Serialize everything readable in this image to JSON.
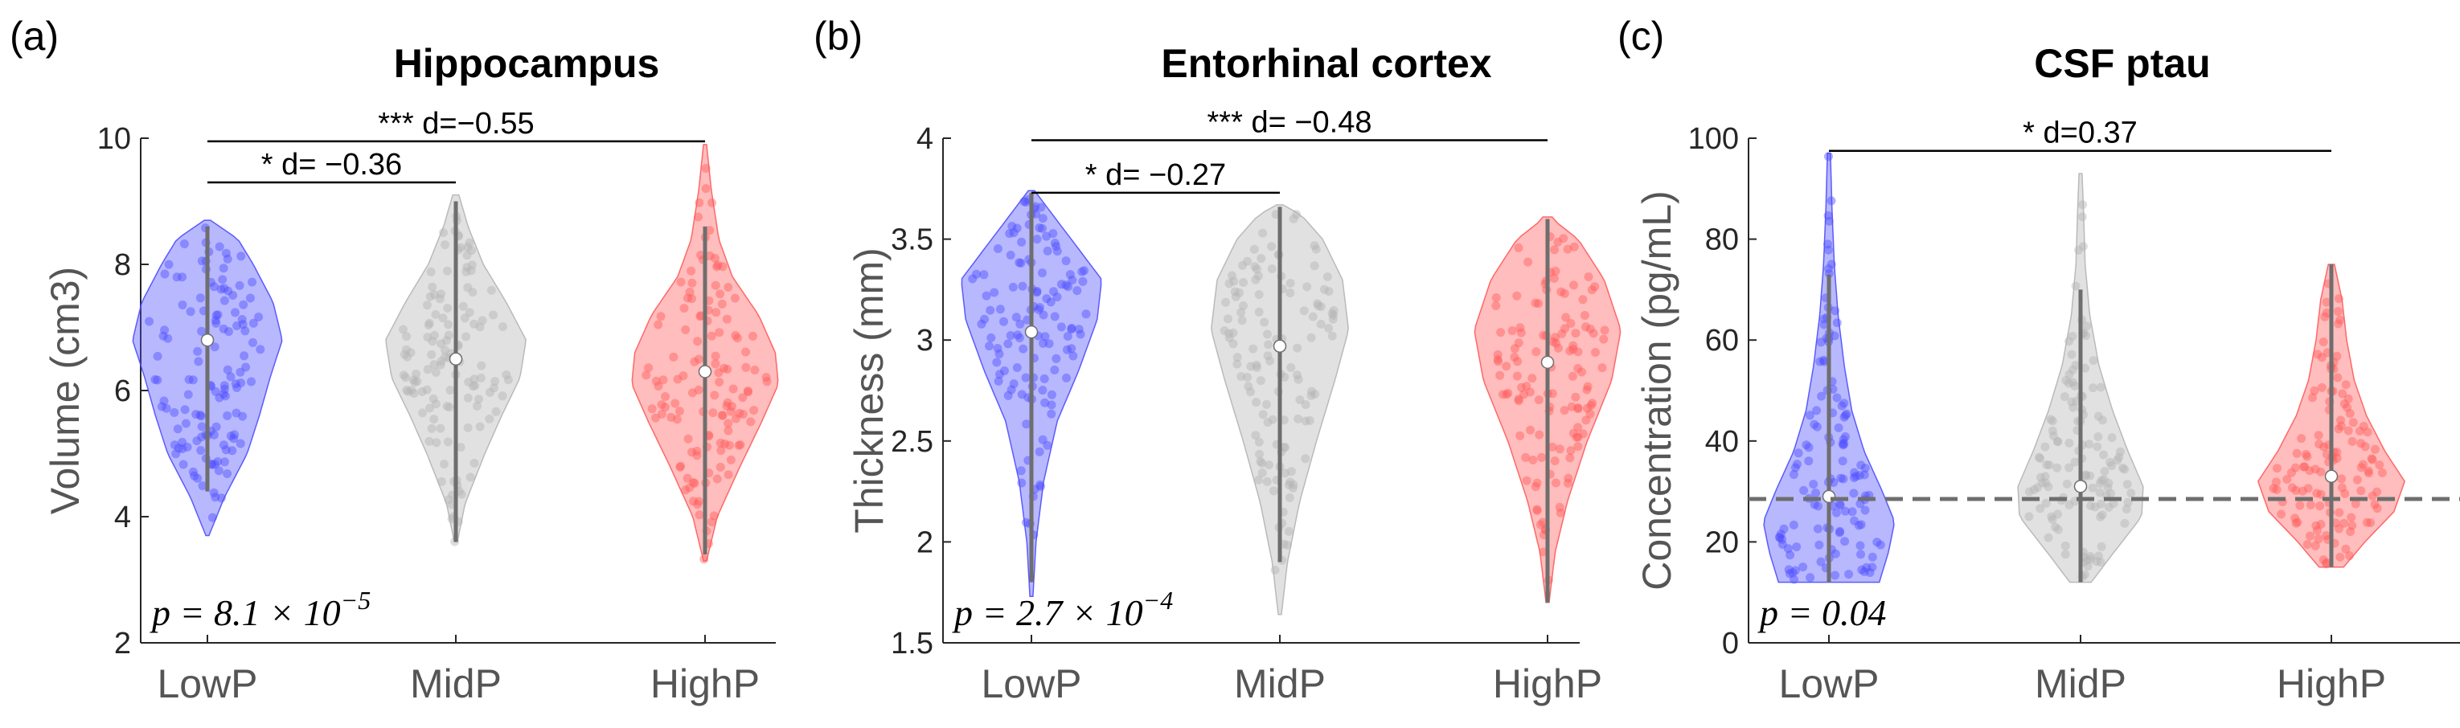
{
  "chart_data": [
    {
      "type": "violin",
      "panel": "(a)",
      "title": "Hippocampus",
      "ylabel": "Volume (cm3)",
      "ylim": [
        2,
        10
      ],
      "yticks": [
        2,
        4,
        6,
        8,
        10
      ],
      "categories": [
        "LowP",
        "MidP",
        "HighP"
      ],
      "colors": [
        "#4d4dff",
        "#b4b4b4",
        "#ff5a5a"
      ],
      "medians": [
        6.8,
        6.5,
        6.3
      ],
      "ranges": [
        [
          3.7,
          8.7
        ],
        [
          3.6,
          9.1
        ],
        [
          3.3,
          9.9
        ]
      ],
      "whiskers": [
        [
          4.4,
          8.6
        ],
        [
          3.6,
          9.0
        ],
        [
          3.4,
          8.6
        ]
      ],
      "widths": [
        [
          3.7,
          0.02
        ],
        [
          4.3,
          0.22
        ],
        [
          5.0,
          0.52
        ],
        [
          5.6,
          0.68
        ],
        [
          6.2,
          0.82
        ],
        [
          6.8,
          0.98
        ],
        [
          7.4,
          0.86
        ],
        [
          8.0,
          0.6
        ],
        [
          8.4,
          0.4
        ],
        [
          8.7,
          0.04
        ]
      ],
      "widths_mid": [
        [
          3.6,
          0.02
        ],
        [
          4.2,
          0.12
        ],
        [
          5.0,
          0.38
        ],
        [
          5.6,
          0.6
        ],
        [
          6.2,
          0.84
        ],
        [
          6.8,
          0.92
        ],
        [
          7.4,
          0.66
        ],
        [
          8.0,
          0.36
        ],
        [
          8.6,
          0.16
        ],
        [
          9.1,
          0.04
        ]
      ],
      "widths_high": [
        [
          3.3,
          0.02
        ],
        [
          4.0,
          0.16
        ],
        [
          4.8,
          0.46
        ],
        [
          5.5,
          0.74
        ],
        [
          6.1,
          0.96
        ],
        [
          6.6,
          0.92
        ],
        [
          7.2,
          0.7
        ],
        [
          7.8,
          0.36
        ],
        [
          8.4,
          0.18
        ],
        [
          9.2,
          0.08
        ],
        [
          9.9,
          0.02
        ]
      ],
      "comparisons": [
        {
          "from": 0,
          "to": 1,
          "label": "* d= −0.36",
          "y": 9.3
        },
        {
          "from": 0,
          "to": 2,
          "label": "*** d=−0.55",
          "y": 9.95
        }
      ],
      "p_text": "p = 8.1 × 10",
      "p_exp": "−5"
    },
    {
      "type": "violin",
      "panel": "(b)",
      "title": "Entorhinal cortex",
      "ylabel": "Thickness (mm)",
      "ylim": [
        1.5,
        4
      ],
      "yticks": [
        1.5,
        2,
        2.5,
        3,
        3.5,
        4
      ],
      "categories": [
        "LowP",
        "MidP",
        "HighP"
      ],
      "colors": [
        "#4d4dff",
        "#b4b4b4",
        "#ff5a5a"
      ],
      "medians": [
        3.04,
        2.97,
        2.89
      ],
      "ranges": [
        [
          1.73,
          3.74
        ],
        [
          1.64,
          3.67
        ],
        [
          1.7,
          3.61
        ]
      ],
      "whiskers": [
        [
          1.8,
          3.73
        ],
        [
          1.9,
          3.66
        ],
        [
          1.7,
          3.6
        ]
      ],
      "widths": [
        [
          1.73,
          0.02
        ],
        [
          2.0,
          0.06
        ],
        [
          2.3,
          0.16
        ],
        [
          2.6,
          0.34
        ],
        [
          2.85,
          0.62
        ],
        [
          3.1,
          0.86
        ],
        [
          3.3,
          0.92
        ],
        [
          3.5,
          0.52
        ],
        [
          3.65,
          0.22
        ],
        [
          3.74,
          0.04
        ]
      ],
      "widths_mid": [
        [
          1.64,
          0.02
        ],
        [
          1.9,
          0.1
        ],
        [
          2.2,
          0.26
        ],
        [
          2.5,
          0.48
        ],
        [
          2.8,
          0.72
        ],
        [
          3.05,
          0.9
        ],
        [
          3.3,
          0.82
        ],
        [
          3.5,
          0.56
        ],
        [
          3.62,
          0.28
        ],
        [
          3.67,
          0.04
        ]
      ],
      "widths_high": [
        [
          1.7,
          0.02
        ],
        [
          1.95,
          0.1
        ],
        [
          2.2,
          0.26
        ],
        [
          2.5,
          0.52
        ],
        [
          2.8,
          0.84
        ],
        [
          3.05,
          0.96
        ],
        [
          3.3,
          0.74
        ],
        [
          3.5,
          0.4
        ],
        [
          3.6,
          0.06
        ]
      ],
      "comparisons": [
        {
          "from": 0,
          "to": 1,
          "label": "* d= −0.27",
          "y": 3.73
        },
        {
          "from": 0,
          "to": 2,
          "label": "*** d= −0.48",
          "y": 3.99
        }
      ],
      "p_text": "p = 2.7 × 10",
      "p_exp": "−4"
    },
    {
      "type": "violin",
      "panel": "(c)",
      "title": "CSF ptau",
      "ylabel": "Concentration (pg/mL)",
      "ylim": [
        0,
        100
      ],
      "yticks": [
        0,
        20,
        40,
        60,
        80,
        100
      ],
      "categories": [
        "LowP",
        "MidP",
        "HighP"
      ],
      "colors": [
        "#4d4dff",
        "#b4b4b4",
        "#ff5a5a"
      ],
      "medians": [
        29,
        31,
        33
      ],
      "ranges": [
        [
          12,
          97
        ],
        [
          12,
          93
        ],
        [
          15,
          75
        ]
      ],
      "whiskers": [
        [
          12,
          73
        ],
        [
          12,
          70
        ],
        [
          15,
          75
        ]
      ],
      "widths": [
        [
          12,
          0.66
        ],
        [
          18,
          0.78
        ],
        [
          24,
          0.86
        ],
        [
          30,
          0.7
        ],
        [
          38,
          0.46
        ],
        [
          46,
          0.3
        ],
        [
          55,
          0.2
        ],
        [
          65,
          0.12
        ],
        [
          75,
          0.07
        ],
        [
          86,
          0.04
        ],
        [
          97,
          0.02
        ]
      ],
      "widths_mid": [
        [
          12,
          0.14
        ],
        [
          18,
          0.44
        ],
        [
          25,
          0.8
        ],
        [
          31,
          0.82
        ],
        [
          38,
          0.62
        ],
        [
          46,
          0.42
        ],
        [
          55,
          0.24
        ],
        [
          65,
          0.12
        ],
        [
          75,
          0.06
        ],
        [
          85,
          0.04
        ],
        [
          93,
          0.02
        ]
      ],
      "widths_high": [
        [
          15,
          0.16
        ],
        [
          20,
          0.44
        ],
        [
          26,
          0.82
        ],
        [
          32,
          0.96
        ],
        [
          38,
          0.7
        ],
        [
          45,
          0.46
        ],
        [
          52,
          0.3
        ],
        [
          60,
          0.2
        ],
        [
          68,
          0.14
        ],
        [
          75,
          0.04
        ]
      ],
      "reference_line": 28.5,
      "comparisons": [
        {
          "from": 0,
          "to": 2,
          "label": "* d=0.37",
          "y": 97.5
        }
      ],
      "p_text": "p = 0.04",
      "p_exp": ""
    }
  ]
}
